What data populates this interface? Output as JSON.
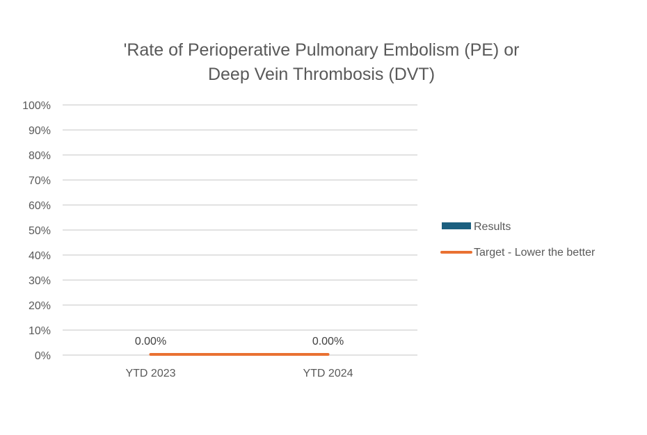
{
  "chart_data": {
    "type": "bar",
    "title_lines": [
      "'Rate of Perioperative Pulmonary Embolism (PE) or",
      "Deep Vein Thrombosis (DVT)"
    ],
    "categories": [
      "YTD 2023",
      "YTD 2024"
    ],
    "series": [
      {
        "name": "Results",
        "type": "bar",
        "values": [
          0,
          0
        ],
        "color": "#1B5F7F"
      },
      {
        "name": "Target - Lower the better",
        "type": "line",
        "values": [
          0,
          0
        ],
        "color": "#E97132"
      }
    ],
    "data_labels": [
      "0.00%",
      "0.00%"
    ],
    "ylim": [
      0,
      1
    ],
    "yticks": [
      "0%",
      "10%",
      "20%",
      "30%",
      "40%",
      "50%",
      "60%",
      "70%",
      "80%",
      "90%",
      "100%"
    ],
    "grid": true,
    "legend_position": "right",
    "xlabel": "",
    "ylabel": ""
  }
}
